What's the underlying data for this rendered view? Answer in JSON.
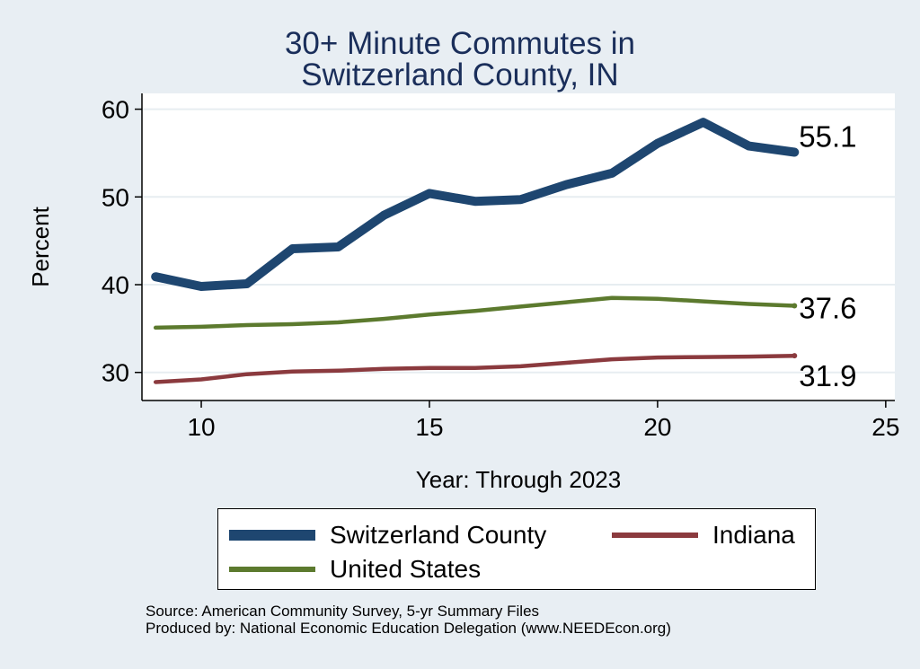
{
  "title": {
    "line1": "30+ Minute Commutes in",
    "line2": "Switzerland County, IN"
  },
  "chart_data": {
    "type": "line",
    "title": "30+ Minute Commutes in Switzerland County, IN",
    "xlabel": "Year: Through 2023",
    "ylabel": "Percent",
    "xlim": [
      8.7,
      25.2
    ],
    "ylim": [
      26.8,
      61.8
    ],
    "xticks": [
      10,
      15,
      20,
      25
    ],
    "yticks": [
      30,
      40,
      50,
      60
    ],
    "grid": true,
    "legend_position": "bottom",
    "x": [
      9,
      10,
      11,
      12,
      13,
      14,
      15,
      16,
      17,
      18,
      19,
      20,
      21,
      22,
      23
    ],
    "series": [
      {
        "name": "Switzerland County",
        "color": "#1e4670",
        "width": "thick",
        "values": [
          40.9,
          39.8,
          40.1,
          44.1,
          44.3,
          47.9,
          50.4,
          49.5,
          49.7,
          51.4,
          52.7,
          56.1,
          58.5,
          55.8,
          55.1
        ],
        "end_label": "55.1"
      },
      {
        "name": "Indiana",
        "color": "#8b3a3e",
        "width": "medium",
        "values": [
          28.9,
          29.2,
          29.8,
          30.1,
          30.2,
          30.4,
          30.5,
          30.5,
          30.7,
          31.1,
          31.5,
          31.7,
          31.75,
          31.8,
          31.9
        ],
        "end_label": "31.9"
      },
      {
        "name": "United States",
        "color": "#5c7a2e",
        "width": "medium",
        "values": [
          35.1,
          35.2,
          35.4,
          35.5,
          35.7,
          36.1,
          36.6,
          37.0,
          37.5,
          38.0,
          38.5,
          38.4,
          38.1,
          37.8,
          37.6
        ],
        "end_label": "37.6"
      }
    ]
  },
  "legend": {
    "items": [
      {
        "label": "Switzerland County",
        "color": "#1e4670"
      },
      {
        "label": "Indiana",
        "color": "#8b3a3e"
      },
      {
        "label": "United States",
        "color": "#5c7a2e"
      }
    ]
  },
  "footer": {
    "source": "Source: American Community Survey, 5-yr Summary Files",
    "produced": "Produced by: National Economic Education Delegation (www.NEEDEcon.org)"
  }
}
